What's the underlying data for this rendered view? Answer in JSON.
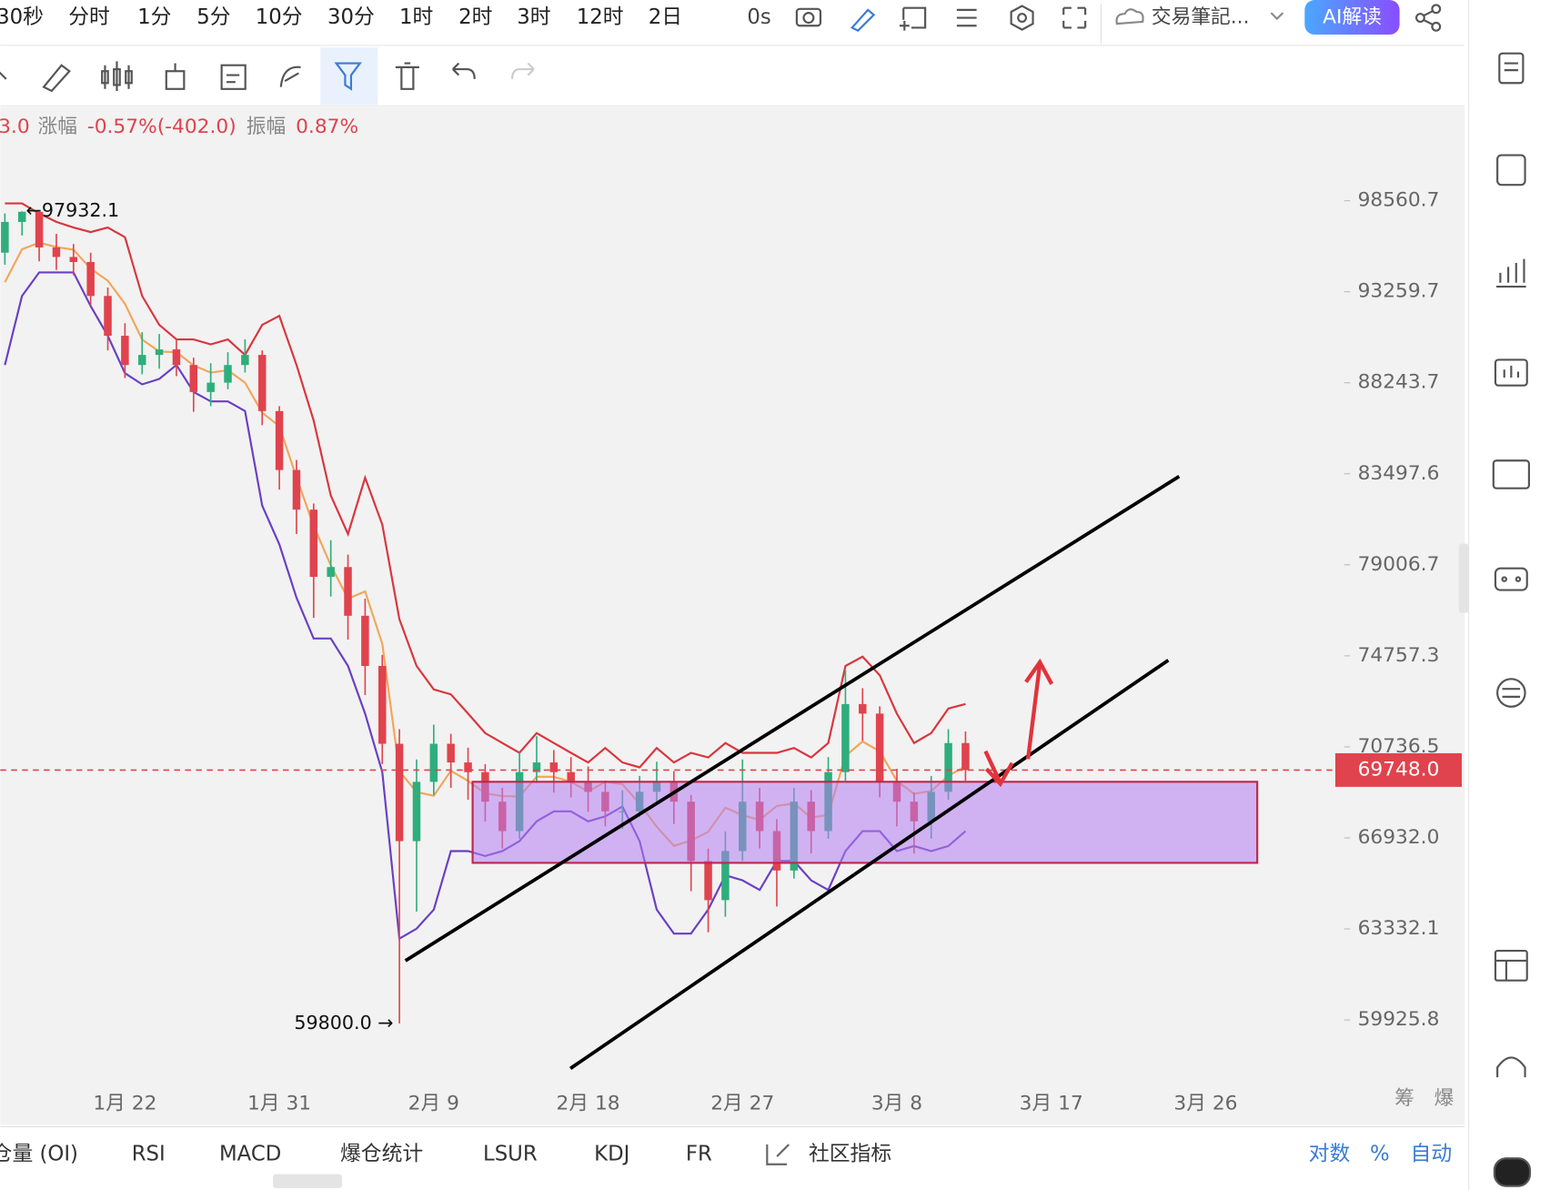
{
  "toolbar": {
    "intervals": [
      "30秒",
      "分时",
      "1分",
      "5分",
      "10分",
      "30分",
      "1时",
      "2时",
      "3时",
      "12时",
      "2日"
    ],
    "countdown": "0s",
    "notes": "交易筆記...",
    "ai": "AI解读"
  },
  "info": {
    "price_cut": "3.0",
    "change_label": "涨幅",
    "change": "-0.57%(-402.0)",
    "amplitude_label": "振幅",
    "amplitude": "0.87%"
  },
  "chart_data": {
    "type": "candlestick",
    "log_scale": true,
    "grid": false,
    "categories": [
      null,
      null,
      null,
      null,
      null,
      null,
      null,
      "1月 22",
      null,
      null,
      null,
      null,
      null,
      null,
      null,
      null,
      "1月 31",
      null,
      null,
      null,
      null,
      null,
      null,
      null,
      null,
      "2月 9",
      null,
      null,
      null,
      null,
      null,
      null,
      null,
      null,
      "2月 18",
      null,
      null,
      null,
      null,
      null,
      null,
      null,
      null,
      "2月 27",
      null,
      null,
      null,
      null,
      null,
      null,
      null,
      null,
      "3月 8",
      null,
      null,
      null,
      null,
      null,
      null,
      null,
      null,
      "3月 17",
      null,
      null,
      null,
      null,
      null,
      null,
      null,
      null,
      "3月 26",
      null,
      null,
      null,
      null,
      null,
      null,
      null
    ],
    "candles": {
      "up_color": "#2eae7c",
      "down_color": "#e0434d",
      "open": [
        95500,
        97300,
        97900,
        95800,
        95250,
        94960,
        93020,
        90800,
        89200,
        89750,
        90050,
        89200,
        87750,
        88250,
        89200,
        89750,
        86740,
        83690,
        81700,
        78430,
        78900,
        76600,
        74300,
        70870,
        66800,
        69250,
        70870,
        70070,
        69660,
        68420,
        67210,
        69660,
        70070,
        69660,
        69250,
        68830,
        68020,
        68020,
        68830,
        69250,
        68420,
        66000,
        64450,
        66400,
        68420,
        67210,
        65620,
        68420,
        67210,
        69660,
        72600,
        72180,
        69250,
        68420,
        67610,
        68830,
        70900,
        null,
        null,
        null,
        null,
        null,
        null,
        null,
        null,
        null,
        null,
        null,
        null,
        null,
        null,
        null,
        null,
        null,
        null,
        null,
        null,
        null
      ],
      "high": [
        97800,
        97932.1,
        97600,
        96600,
        96000,
        95500,
        93500,
        91500,
        91000,
        90900,
        90600,
        89600,
        89300,
        89900,
        90600,
        90000,
        87000,
        84200,
        82000,
        80200,
        79500,
        77400,
        74800,
        71500,
        70200,
        71700,
        71300,
        70700,
        70000,
        69000,
        70500,
        71200,
        70600,
        70300,
        69900,
        69300,
        68900,
        69500,
        70100,
        69700,
        68700,
        66500,
        67200,
        70200,
        69000,
        67700,
        69000,
        68900,
        70300,
        74100,
        73300,
        72500,
        69800,
        68800,
        69500,
        71500,
        71400,
        null,
        null,
        null,
        null,
        null,
        null,
        null,
        null,
        null,
        null,
        null,
        null,
        null,
        null,
        null,
        null,
        null,
        null,
        null,
        null,
        null
      ],
      "low": [
        94800,
        96500,
        95000,
        94500,
        94200,
        92500,
        90000,
        88500,
        88700,
        89000,
        88600,
        86700,
        87000,
        87900,
        88800,
        86000,
        82700,
        80500,
        76500,
        77500,
        75500,
        73000,
        70000,
        59800.0,
        64000,
        68700,
        69000,
        68500,
        67600,
        66500,
        66900,
        69200,
        68800,
        68600,
        68000,
        67400,
        67300,
        67800,
        68300,
        67500,
        64800,
        63200,
        63800,
        66000,
        66500,
        64200,
        65300,
        66300,
        66900,
        69300,
        71000,
        68600,
        67400,
        66300,
        66900,
        68500,
        69300,
        null,
        null,
        null,
        null,
        null,
        null,
        null,
        null,
        null,
        null,
        null,
        null,
        null,
        null,
        null,
        null,
        null,
        null,
        null,
        null,
        null
      ],
      "close": [
        97300,
        97900,
        95800,
        95250,
        94960,
        93020,
        90800,
        89200,
        89750,
        90050,
        89200,
        87750,
        88250,
        89200,
        89750,
        86740,
        83690,
        81700,
        78430,
        78900,
        76600,
        74300,
        70870,
        66800,
        69250,
        70870,
        70070,
        69660,
        68420,
        67210,
        69660,
        70070,
        69660,
        69250,
        68830,
        68020,
        68020,
        68830,
        69250,
        68420,
        66000,
        64450,
        66400,
        68420,
        67210,
        65620,
        68420,
        67210,
        69660,
        72600,
        72180,
        69250,
        68420,
        67610,
        68830,
        70900,
        69748.0,
        null,
        null,
        null,
        null,
        null,
        null,
        null,
        null,
        null,
        null,
        null,
        null,
        null,
        null,
        null,
        null,
        null,
        null,
        null,
        null,
        null
      ]
    },
    "lines": [
      {
        "color": "#d9363e",
        "values": [
          98400,
          98400,
          97800,
          97300,
          96970,
          96700,
          96970,
          96400,
          93020,
          91400,
          90600,
          90600,
          90330,
          90600,
          89750,
          91400,
          91900,
          89200,
          86250,
          82400,
          80500,
          83300,
          80960,
          76440,
          74300,
          73250,
          73030,
          72180,
          71330,
          70900,
          70480,
          71330,
          70900,
          70480,
          70070,
          70690,
          70070,
          69860,
          70690,
          70070,
          70480,
          70280,
          70900,
          70480,
          70480,
          70480,
          70690,
          70280,
          70900,
          74300,
          74720,
          73880,
          72180,
          70900,
          71330,
          72400,
          72600,
          null,
          null,
          null,
          null,
          null,
          null,
          null,
          null,
          null,
          null,
          null,
          null,
          null,
          null,
          null,
          null,
          null,
          null,
          null,
          null,
          null
        ]
      },
      {
        "color": "#f2a65a",
        "values": [
          93800,
          95700,
          96080,
          95830,
          95670,
          94580,
          93890,
          92580,
          90590,
          89930,
          89900,
          89180,
          88790,
          88920,
          88250,
          86650,
          85950,
          83320,
          80900,
          78980,
          77400,
          77740,
          75310,
          69700,
          68820,
          68670,
          69720,
          69290,
          68770,
          68650,
          68640,
          69470,
          69460,
          69250,
          68840,
          69250,
          69150,
          68330,
          67390,
          66610,
          66820,
          67180,
          68170,
          67860,
          67670,
          68240,
          68350,
          67760,
          67880,
          70350,
          70970,
          70550,
          69290,
          68750,
          68870,
          69500,
          69910,
          null,
          null,
          null,
          null,
          null,
          null,
          null,
          null,
          null,
          null,
          null,
          null,
          null,
          null,
          null,
          null,
          null,
          null,
          null,
          null,
          null
        ]
      },
      {
        "color": "#6a3fc4",
        "values": [
          89200,
          93020,
          94360,
          94360,
          94360,
          92450,
          90800,
          88760,
          88160,
          88450,
          89200,
          87750,
          87250,
          87250,
          86740,
          81900,
          80000,
          77440,
          75550,
          75550,
          74300,
          72180,
          69660,
          62960,
          63340,
          64080,
          66400,
          66400,
          66200,
          66400,
          66800,
          67610,
          68020,
          68020,
          67610,
          67810,
          68220,
          66800,
          64080,
          63150,
          63150,
          64080,
          65430,
          65230,
          64850,
          66000,
          66000,
          65230,
          64850,
          66400,
          67210,
          67210,
          66400,
          66600,
          66400,
          66600,
          67210,
          null,
          null,
          null,
          null,
          null,
          null,
          null,
          null,
          null,
          null,
          null,
          null,
          null,
          null,
          null,
          null,
          null,
          null,
          null,
          null,
          null
        ]
      }
    ],
    "ylim": [
      57700,
      104100
    ],
    "yticks": [
      98560.7,
      93259.7,
      88243.7,
      83497.6,
      79006.7,
      74757.3,
      70736.5,
      {
        "value": 66932.0,
        "label": "66932.0"
      },
      63332.1,
      59925.8
    ],
    "current_price": {
      "value": 69748.0,
      "label": "69748.0",
      "color": "#e0434d"
    },
    "annotations": [
      "←97932.1",
      "59800.0 →"
    ],
    "axis_icons": [
      "筹",
      "爆"
    ]
  },
  "bottom_tabs": [
    "仓量 (OI)",
    "RSI",
    "MACD",
    "爆仓统计",
    "LSUR",
    "KDJ",
    "FR",
    "社区指标"
  ],
  "scale_options": [
    "对数",
    "%",
    "自动"
  ]
}
